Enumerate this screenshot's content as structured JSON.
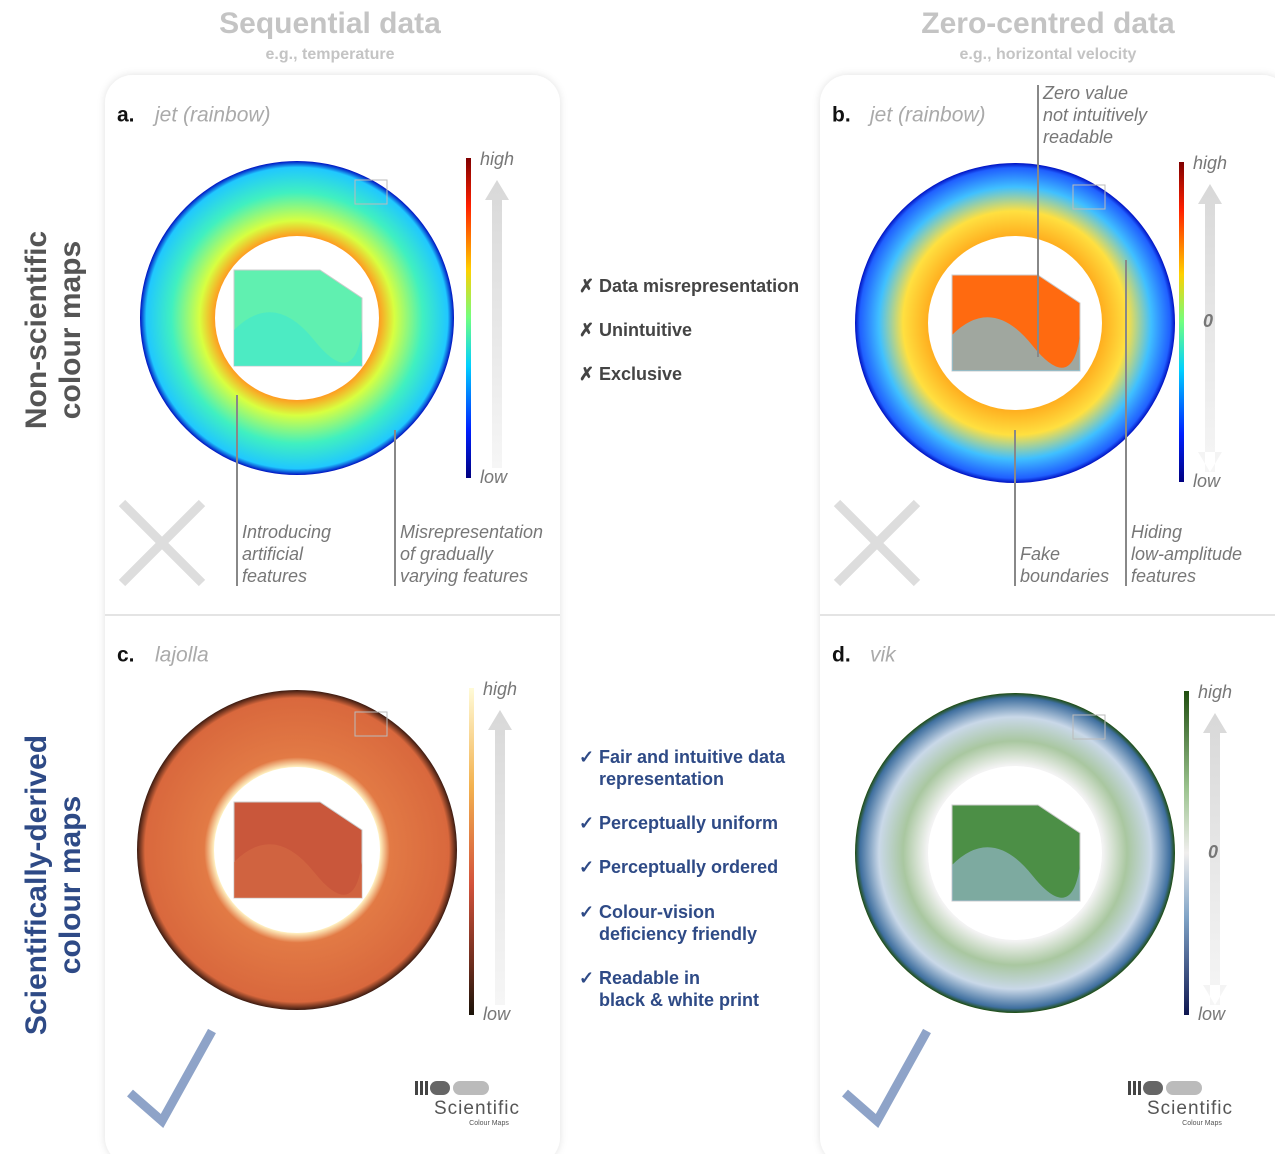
{
  "columns": [
    {
      "title": "Sequential data",
      "subtitle": "e.g., temperature"
    },
    {
      "title": "Zero-centred data",
      "subtitle": "e.g., horizontal velocity"
    }
  ],
  "rows": [
    {
      "label": [
        "Non-scientific",
        "colour maps"
      ]
    },
    {
      "label": [
        "Scientifically-derived",
        "colour maps"
      ]
    }
  ],
  "panels": [
    {
      "letter": "a.",
      "name": "jet (rainbow)",
      "colorbar": {
        "high": "high",
        "low": "low"
      },
      "annotations": [
        {
          "lines": [
            "Introducing",
            "artificial",
            "features"
          ]
        },
        {
          "lines": [
            "Misrepresentation",
            "of gradually",
            "varying features"
          ]
        }
      ]
    },
    {
      "letter": "b.",
      "name": "jet (rainbow)",
      "colorbar": {
        "high": "high",
        "mid": "0",
        "low": "low"
      },
      "annotations": [
        {
          "lines": [
            "Zero value",
            "not intuitively",
            "readable"
          ]
        },
        {
          "lines": [
            "Fake",
            "boundaries"
          ]
        },
        {
          "lines": [
            "Hiding",
            "low-amplitude",
            "features"
          ]
        }
      ]
    },
    {
      "letter": "c.",
      "name": "lajolla",
      "colorbar": {
        "high": "high",
        "low": "low"
      },
      "annotations": []
    },
    {
      "letter": "d.",
      "name": "vik",
      "colorbar": {
        "high": "high",
        "mid": "0",
        "low": "low"
      },
      "annotations": []
    }
  ],
  "drawbacks": {
    "marker": "✗",
    "items": [
      [
        "Data misrepresentation"
      ],
      [
        "Unintuitive"
      ],
      [
        "Exclusive"
      ]
    ]
  },
  "benefits": {
    "marker": "✓",
    "items": [
      [
        "Fair and intuitive data",
        "representation"
      ],
      [
        "Perceptually uniform"
      ],
      [
        "Perceptually ordered"
      ],
      [
        "Colour-vision",
        "deficiency friendly"
      ],
      [
        "Readable in",
        "black & white print"
      ]
    ]
  },
  "logo": {
    "title": "Scientific",
    "subtitle": "Colour Maps"
  }
}
